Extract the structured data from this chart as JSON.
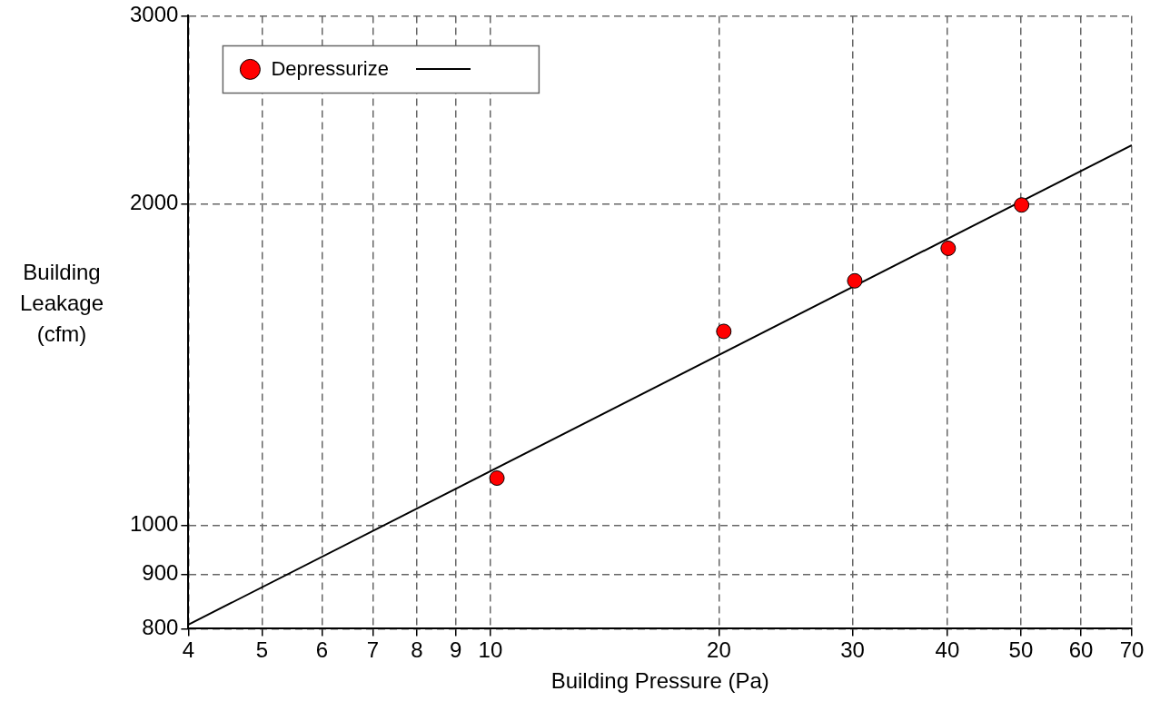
{
  "chart_data": {
    "type": "scatter",
    "xlabel": "Building Pressure (Pa)",
    "ylabel": "Building Leakage (cfm)",
    "log": "xy",
    "grid": true,
    "legend": "top left",
    "marker": "circle",
    "xlim": [
      4,
      70
    ],
    "xticks": [
      4,
      5,
      6,
      7,
      8,
      9,
      10,
      20,
      30,
      40,
      50,
      60,
      70
    ],
    "ylim": [
      800,
      3000
    ],
    "yticks": [
      800,
      900,
      1000,
      2000,
      3000
    ],
    "series": [
      {
        "name": "Depressurize",
        "color": "#ff0000",
        "x": [
          10.2,
          20.3,
          30.2,
          40.1,
          50.1
        ],
        "values": [
          1107,
          1519,
          1694,
          1817,
          1995
        ]
      },
      {
        "type": "line",
        "color": "#000000",
        "marker": "none",
        "line_style": "solid",
        "x": [
          4,
          70
        ],
        "values": [
          807,
          2270
        ]
      }
    ]
  }
}
